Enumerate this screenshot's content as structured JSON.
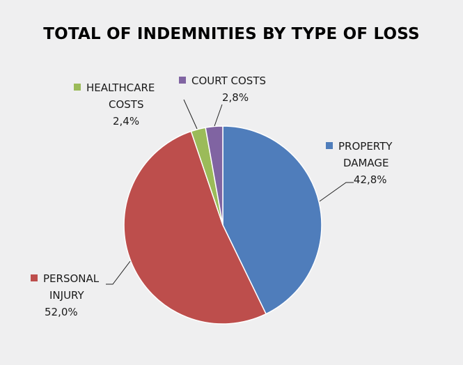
{
  "chart_data": {
    "type": "pie",
    "title": "TOTAL OF INDEMNITIES BY TYPE OF LOSS",
    "slices": [
      {
        "key": "property",
        "name_lines": [
          "PROPERTY",
          "DAMAGE"
        ],
        "value": 42.8,
        "value_label": "42,8%",
        "color": "#4f7dbb"
      },
      {
        "key": "personal",
        "name_lines": [
          "PERSONAL",
          "INJURY"
        ],
        "value": 52.0,
        "value_label": "52,0%",
        "color": "#bd4e4c"
      },
      {
        "key": "healthcare",
        "name_lines": [
          "HEALTHCARE",
          "COSTS"
        ],
        "value": 2.4,
        "value_label": "2,4%",
        "color": "#9bbb59"
      },
      {
        "key": "court",
        "name_lines": [
          "COURT COSTS"
        ],
        "value": 2.8,
        "value_label": "2,8%",
        "color": "#8064a2"
      }
    ],
    "legend": "none",
    "data_labels": "outside with leader lines"
  }
}
